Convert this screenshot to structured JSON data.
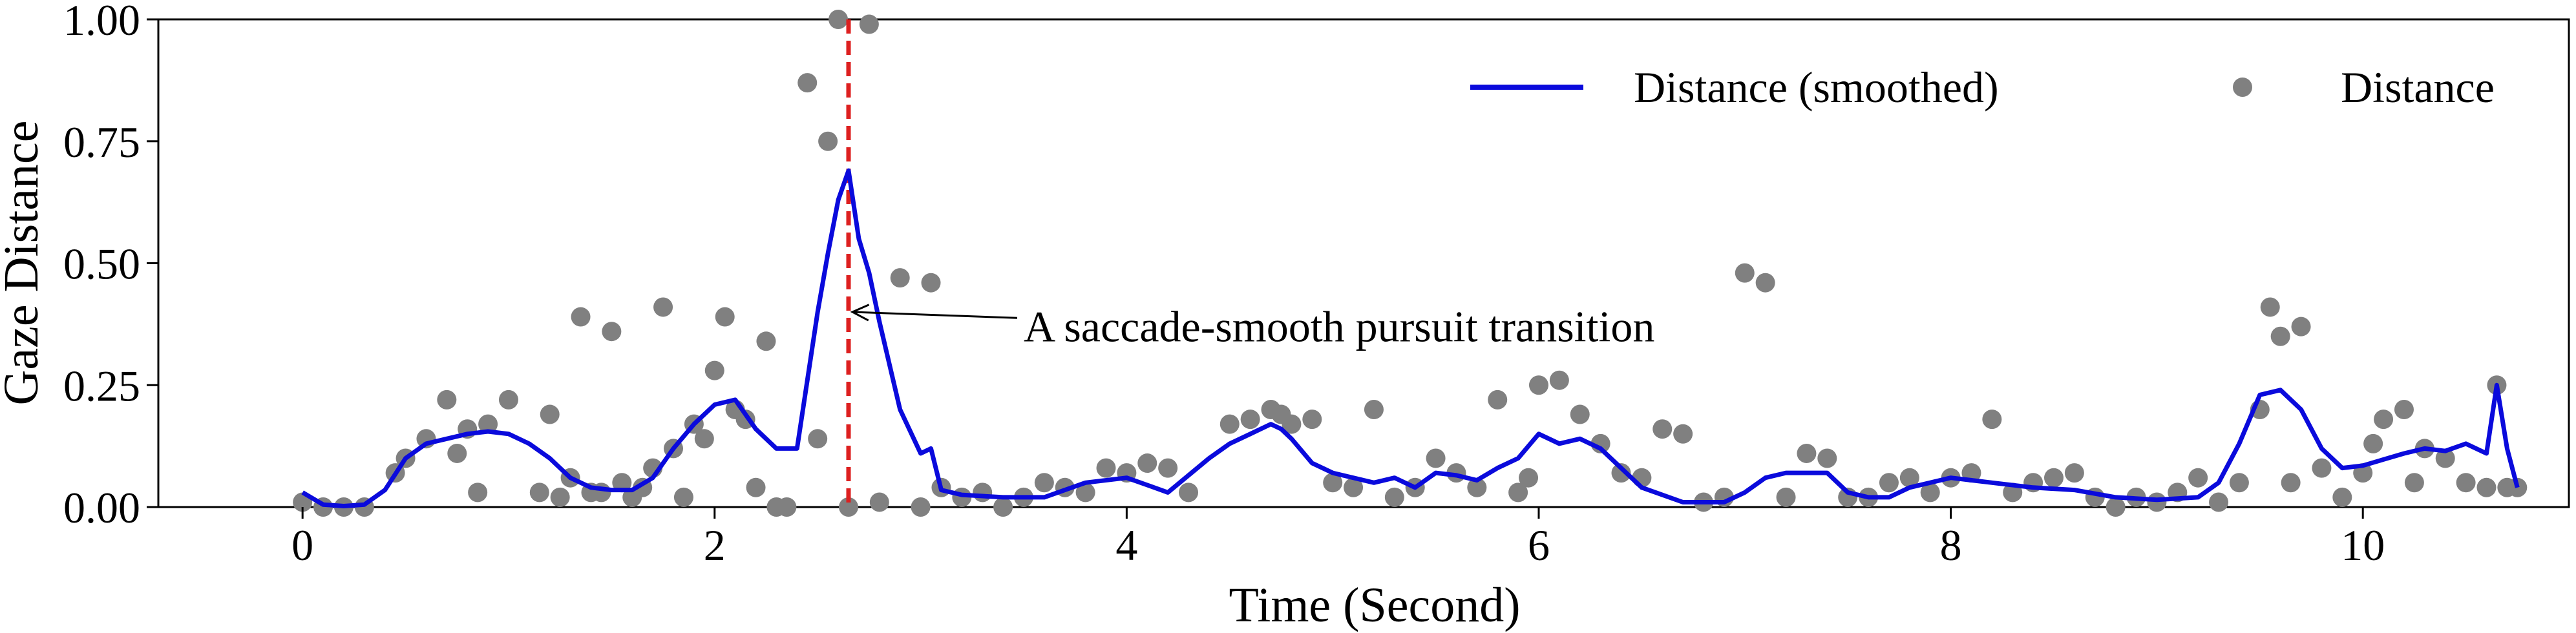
{
  "chart_data": {
    "type": "line",
    "xlabel": "Time (Second)",
    "ylabel": "Gaze Distance",
    "xlim": [
      -0.7,
      11.0
    ],
    "ylim": [
      0.0,
      1.0
    ],
    "xticks": [
      0,
      2,
      4,
      6,
      8,
      10
    ],
    "xtick_labels": [
      "0",
      "2",
      "4",
      "6",
      "8",
      "10"
    ],
    "yticks": [
      0.0,
      0.25,
      0.5,
      0.75,
      1.0
    ],
    "ytick_labels": [
      "0.00",
      "0.25",
      "0.50",
      "0.75",
      "1.00"
    ],
    "grid": false,
    "legend": {
      "placement": "top-right",
      "entries": [
        "Distance (smoothed)",
        "Distance"
      ]
    },
    "colors": {
      "smoothed": "#0a0adc",
      "points": "#808080",
      "marker_line": "#dd1f1f"
    },
    "series": [
      {
        "name": "Distance (smoothed)",
        "kind": "line",
        "x": [
          0.0,
          0.1,
          0.2,
          0.3,
          0.4,
          0.5,
          0.6,
          0.7,
          0.8,
          0.9,
          1.0,
          1.1,
          1.2,
          1.3,
          1.4,
          1.5,
          1.6,
          1.7,
          1.8,
          1.9,
          2.0,
          2.1,
          2.2,
          2.3,
          2.4,
          2.5,
          2.55,
          2.6,
          2.65,
          2.7,
          2.75,
          2.8,
          2.9,
          3.0,
          3.05,
          3.1,
          3.2,
          3.4,
          3.6,
          3.8,
          4.0,
          4.1,
          4.2,
          4.4,
          4.5,
          4.6,
          4.7,
          4.75,
          4.8,
          4.9,
          5.0,
          5.2,
          5.3,
          5.4,
          5.5,
          5.6,
          5.7,
          5.8,
          5.9,
          6.0,
          6.1,
          6.2,
          6.3,
          6.5,
          6.7,
          6.9,
          7.0,
          7.1,
          7.2,
          7.4,
          7.5,
          7.6,
          7.7,
          7.8,
          8.0,
          8.2,
          8.4,
          8.6,
          8.8,
          9.0,
          9.2,
          9.3,
          9.4,
          9.5,
          9.6,
          9.7,
          9.8,
          9.9,
          10.0,
          10.2,
          10.3,
          10.4,
          10.5,
          10.6,
          10.65,
          10.7,
          10.75
        ],
        "y": [
          0.03,
          0.005,
          0.002,
          0.005,
          0.035,
          0.1,
          0.13,
          0.14,
          0.15,
          0.155,
          0.15,
          0.13,
          0.1,
          0.06,
          0.04,
          0.035,
          0.035,
          0.06,
          0.12,
          0.17,
          0.21,
          0.22,
          0.16,
          0.12,
          0.12,
          0.4,
          0.52,
          0.63,
          0.69,
          0.55,
          0.48,
          0.38,
          0.2,
          0.11,
          0.12,
          0.035,
          0.025,
          0.02,
          0.02,
          0.05,
          0.06,
          0.045,
          0.03,
          0.1,
          0.13,
          0.15,
          0.17,
          0.16,
          0.14,
          0.09,
          0.07,
          0.05,
          0.06,
          0.04,
          0.07,
          0.065,
          0.055,
          0.08,
          0.1,
          0.15,
          0.13,
          0.14,
          0.12,
          0.04,
          0.01,
          0.01,
          0.03,
          0.06,
          0.07,
          0.07,
          0.03,
          0.02,
          0.02,
          0.04,
          0.06,
          0.05,
          0.04,
          0.035,
          0.02,
          0.015,
          0.02,
          0.05,
          0.13,
          0.23,
          0.24,
          0.2,
          0.12,
          0.08,
          0.085,
          0.11,
          0.12,
          0.115,
          0.13,
          0.11,
          0.25,
          0.12,
          0.04
        ]
      },
      {
        "name": "Distance",
        "kind": "scatter",
        "x": [
          0.0,
          0.1,
          0.2,
          0.3,
          0.45,
          0.5,
          0.6,
          0.7,
          0.75,
          0.8,
          0.85,
          0.9,
          1.0,
          1.15,
          1.2,
          1.25,
          1.3,
          1.35,
          1.4,
          1.45,
          1.5,
          1.55,
          1.6,
          1.65,
          1.7,
          1.75,
          1.8,
          1.85,
          1.9,
          1.95,
          2.0,
          2.05,
          2.1,
          2.15,
          2.2,
          2.25,
          2.3,
          2.35,
          2.45,
          2.5,
          2.55,
          2.6,
          2.65,
          2.75,
          2.8,
          2.9,
          3.0,
          3.05,
          3.1,
          3.2,
          3.3,
          3.4,
          3.5,
          3.6,
          3.7,
          3.8,
          3.9,
          4.0,
          4.1,
          4.2,
          4.3,
          4.5,
          4.6,
          4.7,
          4.75,
          4.8,
          4.9,
          5.0,
          5.1,
          5.2,
          5.3,
          5.4,
          5.5,
          5.6,
          5.7,
          5.8,
          5.9,
          5.95,
          6.0,
          6.1,
          6.2,
          6.3,
          6.4,
          6.5,
          6.6,
          6.7,
          6.8,
          6.9,
          7.0,
          7.1,
          7.2,
          7.3,
          7.4,
          7.5,
          7.6,
          7.7,
          7.8,
          7.9,
          8.0,
          8.1,
          8.2,
          8.3,
          8.4,
          8.5,
          8.6,
          8.7,
          8.8,
          8.9,
          9.0,
          9.1,
          9.2,
          9.3,
          9.4,
          9.5,
          9.55,
          9.6,
          9.65,
          9.7,
          9.8,
          9.9,
          10.0,
          10.05,
          10.1,
          10.2,
          10.25,
          10.3,
          10.4,
          10.5,
          10.6,
          10.65,
          10.7,
          10.75
        ],
        "y": [
          0.01,
          0.0,
          0.0,
          0.0,
          0.07,
          0.1,
          0.14,
          0.22,
          0.11,
          0.16,
          0.03,
          0.17,
          0.22,
          0.03,
          0.19,
          0.02,
          0.06,
          0.39,
          0.03,
          0.03,
          0.36,
          0.05,
          0.02,
          0.04,
          0.08,
          0.41,
          0.12,
          0.02,
          0.17,
          0.14,
          0.28,
          0.39,
          0.2,
          0.18,
          0.04,
          0.34,
          0.0,
          0.0,
          0.87,
          0.14,
          0.75,
          1.0,
          0.0,
          0.99,
          0.01,
          0.47,
          0.0,
          0.46,
          0.04,
          0.02,
          0.03,
          0.0,
          0.02,
          0.05,
          0.04,
          0.03,
          0.08,
          0.07,
          0.09,
          0.08,
          0.03,
          0.17,
          0.18,
          0.2,
          0.19,
          0.17,
          0.18,
          0.05,
          0.04,
          0.2,
          0.02,
          0.04,
          0.1,
          0.07,
          0.04,
          0.22,
          0.03,
          0.06,
          0.25,
          0.26,
          0.19,
          0.13,
          0.07,
          0.06,
          0.16,
          0.15,
          0.01,
          0.02,
          0.48,
          0.46,
          0.02,
          0.11,
          0.1,
          0.02,
          0.02,
          0.05,
          0.06,
          0.03,
          0.06,
          0.07,
          0.18,
          0.03,
          0.05,
          0.06,
          0.07,
          0.02,
          0.0,
          0.02,
          0.01,
          0.03,
          0.06,
          0.01,
          0.05,
          0.2,
          0.41,
          0.35,
          0.05,
          0.37,
          0.08,
          0.02,
          0.07,
          0.13,
          0.18,
          0.2,
          0.05,
          0.12,
          0.1,
          0.05,
          0.04,
          0.25,
          0.04,
          0.04
        ]
      }
    ],
    "vertical_marker": {
      "x": 2.65,
      "style": "dashed"
    },
    "annotation": {
      "text": "A saccade-smooth pursuit transition",
      "point": [
        2.65,
        0.4
      ],
      "text_at": [
        3.5,
        0.34
      ]
    }
  }
}
